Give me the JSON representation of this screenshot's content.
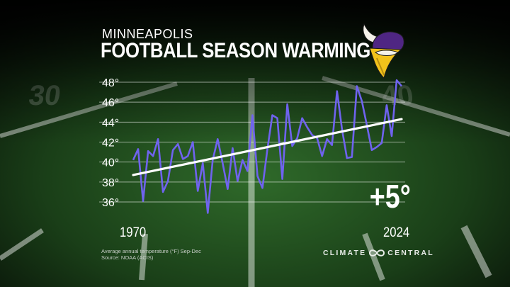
{
  "header": {
    "subtitle": "MINNEAPOLIS",
    "title": "FOOTBALL SEASON WARMING"
  },
  "annotation": {
    "change": "+5°"
  },
  "footnote": {
    "line1": "Average annual temperature (°F) Sep-Dec",
    "line2": "Source: NOAA (ACIS)"
  },
  "brand": {
    "left": "CLIMATE",
    "right": "CENTRAL"
  },
  "logo": {
    "icon": "vikings-logo-icon"
  },
  "colors": {
    "series": "#6f63ee",
    "trend": "#ffffff",
    "grid": "#ffffff",
    "text": "#ffffff",
    "logo_gold": "#f2c21b",
    "logo_purple": "#4f2683"
  },
  "chart_data": {
    "type": "line",
    "title": "FOOTBALL SEASON WARMING",
    "subtitle": "MINNEAPOLIS",
    "xlabel": "",
    "ylabel": "",
    "x_tick_labels": [
      "1970",
      "2024"
    ],
    "y_tick_labels": [
      "36°",
      "38°",
      "40°",
      "42°",
      "44°",
      "46°",
      "48°"
    ],
    "ylim": [
      35,
      48.5
    ],
    "xlim": [
      1970,
      2024
    ],
    "grid": true,
    "series": [
      {
        "x": [
          1970,
          1971,
          1972,
          1973,
          1974,
          1975,
          1976,
          1977,
          1978,
          1979,
          1980,
          1981,
          1982,
          1983,
          1984,
          1985,
          1986,
          1987,
          1988,
          1989,
          1990,
          1991,
          1992,
          1993,
          1994,
          1995,
          1996,
          1997,
          1998,
          1999,
          2000,
          2001,
          2002,
          2003,
          2004,
          2005,
          2006,
          2007,
          2008,
          2009,
          2010,
          2011,
          2012,
          2013,
          2014,
          2015,
          2016,
          2017,
          2018,
          2019,
          2020,
          2021,
          2022,
          2023,
          2024
        ],
        "values": [
          40.2,
          41.3,
          36.1,
          41.1,
          40.6,
          42.3,
          37.0,
          38.1,
          41.2,
          41.8,
          40.3,
          40.6,
          42.0,
          37.1,
          39.9,
          34.9,
          40.2,
          42.3,
          39.9,
          37.3,
          41.4,
          38.1,
          40.2,
          39.1,
          44.7,
          38.6,
          37.4,
          41.3,
          44.7,
          44.4,
          38.3,
          45.8,
          41.6,
          42.4,
          44.4,
          43.5,
          42.7,
          42.4,
          40.6,
          42.3,
          41.7,
          47.1,
          43.3,
          40.4,
          40.5,
          47.6,
          46.1,
          43.7,
          41.2,
          41.5,
          41.9,
          45.7,
          42.6,
          48.2,
          47.6
        ]
      }
    ],
    "trend": {
      "start": 38.7,
      "end": 44.3
    }
  }
}
